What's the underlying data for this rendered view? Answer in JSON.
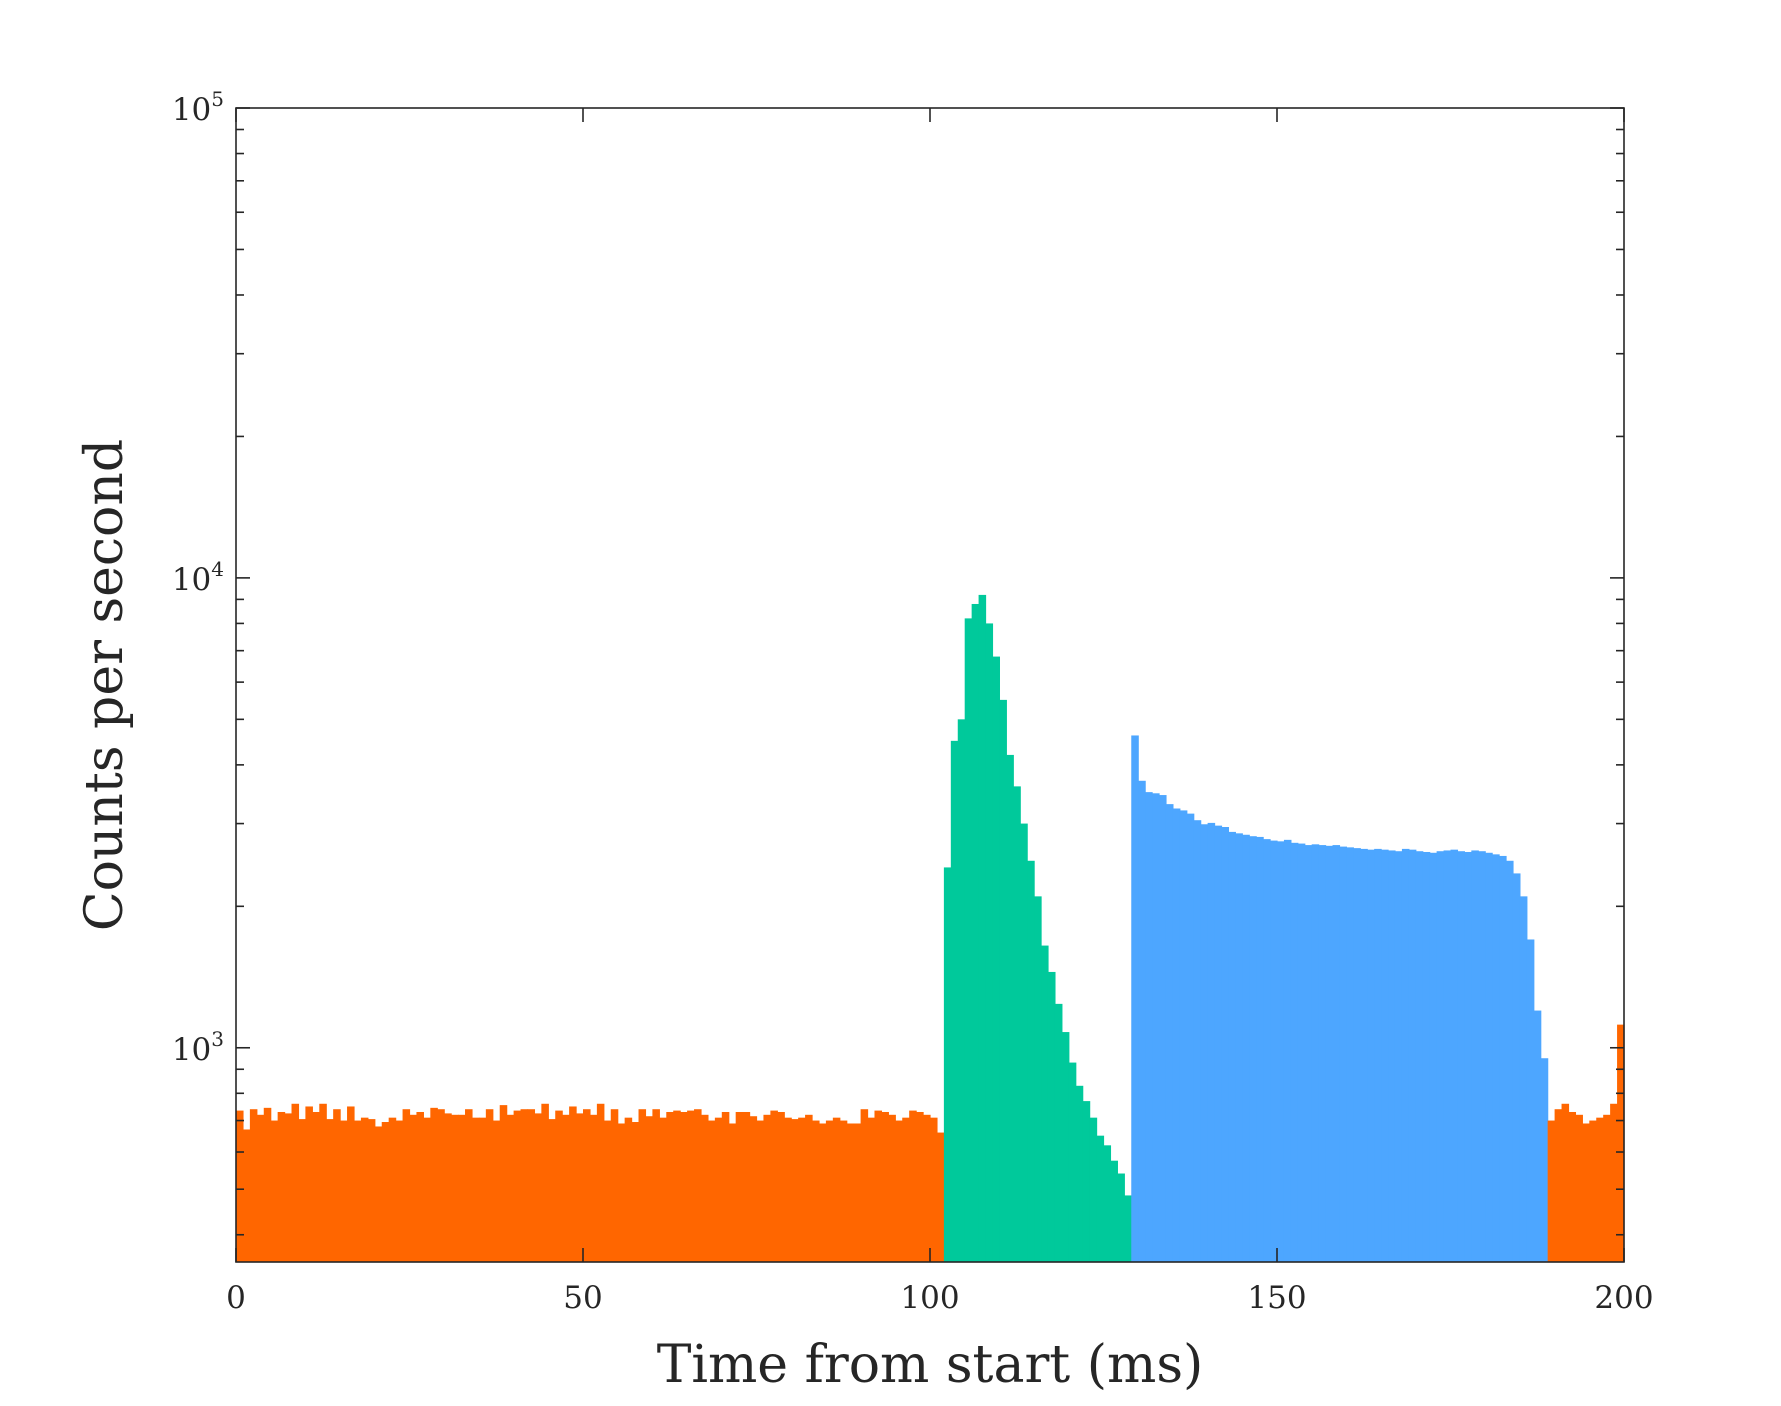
{
  "chart_data": {
    "type": "bar",
    "title": "",
    "xlabel": "Time from start (ms)",
    "ylabel": "Counts per second",
    "xlim": [
      0,
      200
    ],
    "ylim": [
      350,
      100000
    ],
    "yscale": "log",
    "bin_width_ms": 1,
    "grid": false,
    "xticks": [
      {
        "value": 0,
        "label": "0"
      },
      {
        "value": 50,
        "label": "50"
      },
      {
        "value": 100,
        "label": "100"
      },
      {
        "value": 150,
        "label": "150"
      },
      {
        "value": 200,
        "label": "200"
      }
    ],
    "yticks": [
      {
        "value": 1000,
        "base": "10",
        "exp": "3"
      },
      {
        "value": 10000,
        "base": "10",
        "exp": "4"
      },
      {
        "value": 100000,
        "base": "10",
        "exp": "5"
      }
    ],
    "colors": {
      "background": "#ff6600",
      "burst": "#00c99b",
      "afterglow": "#4da6ff",
      "axes": "#262626"
    },
    "series": [
      {
        "id": "background",
        "x": [
          0,
          1,
          2,
          3,
          4,
          5,
          6,
          7,
          8,
          9,
          10,
          11,
          12,
          13,
          14,
          15,
          16,
          17,
          18,
          19,
          20,
          21,
          22,
          23,
          24,
          25,
          26,
          27,
          28,
          29,
          30,
          31,
          32,
          33,
          34,
          35,
          36,
          37,
          38,
          39,
          40,
          41,
          42,
          43,
          44,
          45,
          46,
          47,
          48,
          49,
          50,
          51,
          52,
          53,
          54,
          55,
          56,
          57,
          58,
          59,
          60,
          61,
          62,
          63,
          64,
          65,
          66,
          67,
          68,
          69,
          70,
          71,
          72,
          73,
          74,
          75,
          76,
          77,
          78,
          79,
          80,
          81,
          82,
          83,
          84,
          85,
          86,
          87,
          88,
          89,
          90,
          91,
          92,
          93,
          94,
          95,
          96,
          97,
          98,
          99,
          100,
          101
        ],
        "values": [
          735,
          670,
          740,
          720,
          745,
          700,
          730,
          725,
          760,
          705,
          750,
          730,
          760,
          705,
          740,
          700,
          750,
          700,
          710,
          705,
          680,
          695,
          710,
          700,
          740,
          720,
          730,
          710,
          745,
          740,
          725,
          720,
          720,
          740,
          710,
          710,
          740,
          700,
          755,
          720,
          735,
          740,
          740,
          725,
          760,
          705,
          735,
          720,
          750,
          725,
          740,
          720,
          760,
          700,
          740,
          690,
          710,
          695,
          740,
          715,
          740,
          710,
          730,
          735,
          730,
          735,
          740,
          720,
          700,
          710,
          730,
          690,
          730,
          730,
          715,
          700,
          720,
          735,
          730,
          710,
          705,
          710,
          720,
          700,
          690,
          700,
          710,
          700,
          690,
          690,
          740,
          710,
          735,
          730,
          720,
          700,
          710,
          735,
          730,
          720,
          710,
          660
        ]
      },
      {
        "id": "burst",
        "x": [
          102,
          103,
          104,
          105,
          106,
          107,
          108,
          109,
          110,
          111,
          112,
          113,
          114,
          115,
          116,
          117,
          118,
          119,
          120,
          121,
          122,
          123,
          124,
          125,
          126,
          127,
          128
        ],
        "values": [
          2420,
          4500,
          5000,
          8200,
          8800,
          9200,
          8000,
          6800,
          5500,
          4200,
          3600,
          3000,
          2500,
          2100,
          1650,
          1450,
          1240,
          1080,
          930,
          830,
          770,
          710,
          650,
          620,
          575,
          540,
          485
        ]
      },
      {
        "id": "afterglow",
        "x": [
          129,
          130,
          131,
          132,
          133,
          134,
          135,
          136,
          137,
          138,
          139,
          140,
          141,
          142,
          143,
          144,
          145,
          146,
          147,
          148,
          149,
          150,
          151,
          152,
          153,
          154,
          155,
          156,
          157,
          158,
          159,
          160,
          161,
          162,
          163,
          164,
          165,
          166,
          167,
          168,
          169,
          170,
          171,
          172,
          173,
          174,
          175,
          176,
          177,
          178,
          179,
          180,
          181,
          182,
          183,
          184,
          185,
          186,
          187,
          188
        ],
        "values": [
          4620,
          3700,
          3500,
          3480,
          3450,
          3300,
          3230,
          3200,
          3150,
          3050,
          2990,
          3010,
          2970,
          2950,
          2880,
          2860,
          2840,
          2820,
          2810,
          2780,
          2760,
          2750,
          2770,
          2730,
          2720,
          2700,
          2710,
          2700,
          2690,
          2700,
          2680,
          2670,
          2660,
          2650,
          2640,
          2650,
          2640,
          2630,
          2620,
          2650,
          2640,
          2620,
          2610,
          2600,
          2620,
          2630,
          2640,
          2620,
          2610,
          2630,
          2620,
          2600,
          2580,
          2560,
          2500,
          2350,
          2100,
          1700,
          1200,
          950
        ]
      },
      {
        "id": "background-late",
        "x": [
          189,
          190,
          191,
          192,
          193,
          194,
          195,
          196,
          197,
          198,
          199
        ],
        "values": [
          700,
          740,
          760,
          730,
          720,
          690,
          700,
          710,
          720,
          760,
          1120
        ]
      }
    ]
  }
}
